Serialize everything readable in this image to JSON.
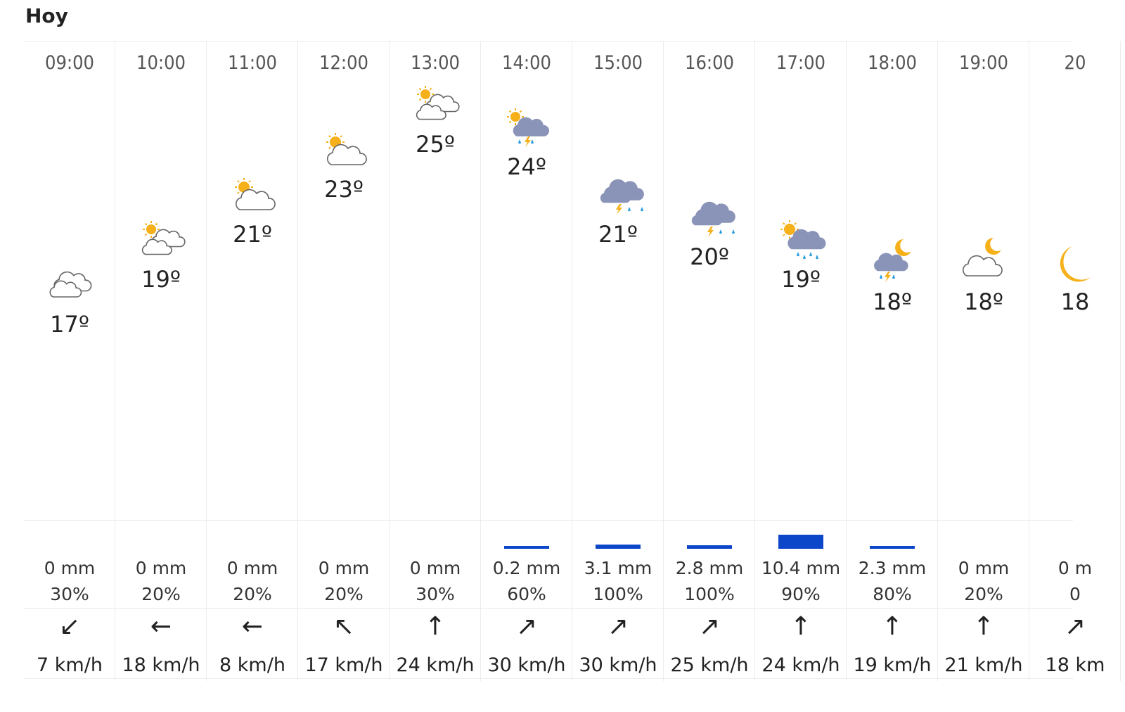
{
  "title": "Hoy",
  "colors": {
    "bar": "#0d47c9",
    "sun": "#f5b01a",
    "storm_cloud": "#8a94b8",
    "rain": "#2a9de0",
    "bolt": "#f5b01a"
  },
  "hours": [
    {
      "time": "09:00",
      "icon": "cloudy-icon",
      "temp": "17º",
      "mm": "0 mm",
      "mm_value": 0,
      "prob": "30%",
      "arrow": "↙",
      "wind": "7 km/h"
    },
    {
      "time": "10:00",
      "icon": "partly-cloudy-icon",
      "temp": "19º",
      "mm": "0 mm",
      "mm_value": 0,
      "prob": "20%",
      "arrow": "←",
      "wind": "18 km/h"
    },
    {
      "time": "11:00",
      "icon": "sun-cloud-icon",
      "temp": "21º",
      "mm": "0 mm",
      "mm_value": 0,
      "prob": "20%",
      "arrow": "←",
      "wind": "8 km/h"
    },
    {
      "time": "12:00",
      "icon": "sun-cloud-icon",
      "temp": "23º",
      "mm": "0 mm",
      "mm_value": 0,
      "prob": "20%",
      "arrow": "↖",
      "wind": "17 km/h"
    },
    {
      "time": "13:00",
      "icon": "partly-cloudy-icon",
      "temp": "25º",
      "mm": "0 mm",
      "mm_value": 0,
      "prob": "30%",
      "arrow": "↑",
      "wind": "24 km/h"
    },
    {
      "time": "14:00",
      "icon": "sun-storm-icon",
      "temp": "24º",
      "mm": "0.2 mm",
      "mm_value": 0.2,
      "prob": "60%",
      "arrow": "↗",
      "wind": "30 km/h"
    },
    {
      "time": "15:00",
      "icon": "storm-icon",
      "temp": "21º",
      "mm": "3.1 mm",
      "mm_value": 3.1,
      "prob": "100%",
      "arrow": "↗",
      "wind": "30 km/h"
    },
    {
      "time": "16:00",
      "icon": "storm-icon",
      "temp": "20º",
      "mm": "2.8 mm",
      "mm_value": 2.8,
      "prob": "100%",
      "arrow": "↗",
      "wind": "25 km/h"
    },
    {
      "time": "17:00",
      "icon": "sun-rain-icon",
      "temp": "19º",
      "mm": "10.4 mm",
      "mm_value": 10.4,
      "prob": "90%",
      "arrow": "↑",
      "wind": "24 km/h"
    },
    {
      "time": "18:00",
      "icon": "moon-storm-icon",
      "temp": "18º",
      "mm": "2.3 mm",
      "mm_value": 2.3,
      "prob": "80%",
      "arrow": "↑",
      "wind": "19 km/h"
    },
    {
      "time": "19:00",
      "icon": "moon-cloud-icon",
      "temp": "18º",
      "mm": "0 mm",
      "mm_value": 0,
      "prob": "20%",
      "arrow": "↑",
      "wind": "21 km/h"
    },
    {
      "time": "20",
      "icon": "moon-icon",
      "temp": "18",
      "mm": "0 m",
      "mm_value": 0,
      "prob": "0",
      "arrow": "↗",
      "wind": "18 km"
    }
  ]
}
